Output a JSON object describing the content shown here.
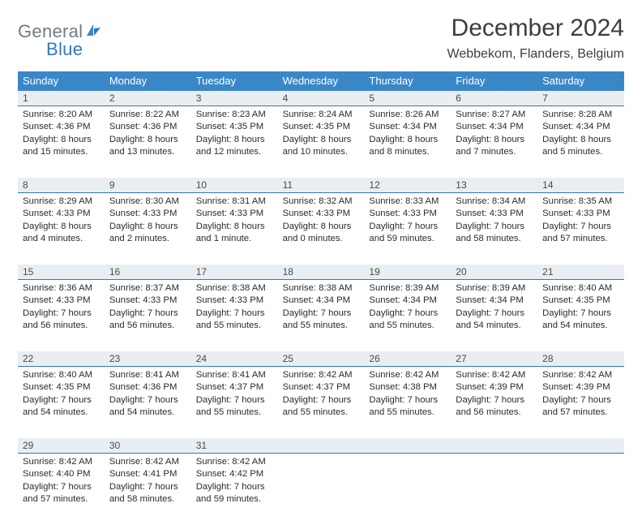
{
  "brand": {
    "part1": "General",
    "part2": "Blue"
  },
  "title": "December 2024",
  "location": "Webbekom, Flanders, Belgium",
  "colors": {
    "header_bg": "#3a87c8",
    "header_text": "#ffffff",
    "daynum_bg": "#e9eef2",
    "separator": "#2f7ac0",
    "logo_gray": "#6f7b84",
    "logo_blue": "#2f7ac0",
    "text": "#2b2b2b",
    "page_bg": "#ffffff"
  },
  "layout": {
    "columns": 7,
    "rows": 5,
    "header_font_size": 13,
    "daynum_font_size": 12,
    "body_font_size": 11.3,
    "title_font_size": 30,
    "location_font_size": 16
  },
  "day_names": [
    "Sunday",
    "Monday",
    "Tuesday",
    "Wednesday",
    "Thursday",
    "Friday",
    "Saturday"
  ],
  "weeks": [
    [
      {
        "n": "1",
        "sr": "8:20 AM",
        "ss": "4:36 PM",
        "dl": "8 hours and 15 minutes."
      },
      {
        "n": "2",
        "sr": "8:22 AM",
        "ss": "4:36 PM",
        "dl": "8 hours and 13 minutes."
      },
      {
        "n": "3",
        "sr": "8:23 AM",
        "ss": "4:35 PM",
        "dl": "8 hours and 12 minutes."
      },
      {
        "n": "4",
        "sr": "8:24 AM",
        "ss": "4:35 PM",
        "dl": "8 hours and 10 minutes."
      },
      {
        "n": "5",
        "sr": "8:26 AM",
        "ss": "4:34 PM",
        "dl": "8 hours and 8 minutes."
      },
      {
        "n": "6",
        "sr": "8:27 AM",
        "ss": "4:34 PM",
        "dl": "8 hours and 7 minutes."
      },
      {
        "n": "7",
        "sr": "8:28 AM",
        "ss": "4:34 PM",
        "dl": "8 hours and 5 minutes."
      }
    ],
    [
      {
        "n": "8",
        "sr": "8:29 AM",
        "ss": "4:33 PM",
        "dl": "8 hours and 4 minutes."
      },
      {
        "n": "9",
        "sr": "8:30 AM",
        "ss": "4:33 PM",
        "dl": "8 hours and 2 minutes."
      },
      {
        "n": "10",
        "sr": "8:31 AM",
        "ss": "4:33 PM",
        "dl": "8 hours and 1 minute."
      },
      {
        "n": "11",
        "sr": "8:32 AM",
        "ss": "4:33 PM",
        "dl": "8 hours and 0 minutes."
      },
      {
        "n": "12",
        "sr": "8:33 AM",
        "ss": "4:33 PM",
        "dl": "7 hours and 59 minutes."
      },
      {
        "n": "13",
        "sr": "8:34 AM",
        "ss": "4:33 PM",
        "dl": "7 hours and 58 minutes."
      },
      {
        "n": "14",
        "sr": "8:35 AM",
        "ss": "4:33 PM",
        "dl": "7 hours and 57 minutes."
      }
    ],
    [
      {
        "n": "15",
        "sr": "8:36 AM",
        "ss": "4:33 PM",
        "dl": "7 hours and 56 minutes."
      },
      {
        "n": "16",
        "sr": "8:37 AM",
        "ss": "4:33 PM",
        "dl": "7 hours and 56 minutes."
      },
      {
        "n": "17",
        "sr": "8:38 AM",
        "ss": "4:33 PM",
        "dl": "7 hours and 55 minutes."
      },
      {
        "n": "18",
        "sr": "8:38 AM",
        "ss": "4:34 PM",
        "dl": "7 hours and 55 minutes."
      },
      {
        "n": "19",
        "sr": "8:39 AM",
        "ss": "4:34 PM",
        "dl": "7 hours and 55 minutes."
      },
      {
        "n": "20",
        "sr": "8:39 AM",
        "ss": "4:34 PM",
        "dl": "7 hours and 54 minutes."
      },
      {
        "n": "21",
        "sr": "8:40 AM",
        "ss": "4:35 PM",
        "dl": "7 hours and 54 minutes."
      }
    ],
    [
      {
        "n": "22",
        "sr": "8:40 AM",
        "ss": "4:35 PM",
        "dl": "7 hours and 54 minutes."
      },
      {
        "n": "23",
        "sr": "8:41 AM",
        "ss": "4:36 PM",
        "dl": "7 hours and 54 minutes."
      },
      {
        "n": "24",
        "sr": "8:41 AM",
        "ss": "4:37 PM",
        "dl": "7 hours and 55 minutes."
      },
      {
        "n": "25",
        "sr": "8:42 AM",
        "ss": "4:37 PM",
        "dl": "7 hours and 55 minutes."
      },
      {
        "n": "26",
        "sr": "8:42 AM",
        "ss": "4:38 PM",
        "dl": "7 hours and 55 minutes."
      },
      {
        "n": "27",
        "sr": "8:42 AM",
        "ss": "4:39 PM",
        "dl": "7 hours and 56 minutes."
      },
      {
        "n": "28",
        "sr": "8:42 AM",
        "ss": "4:39 PM",
        "dl": "7 hours and 57 minutes."
      }
    ],
    [
      {
        "n": "29",
        "sr": "8:42 AM",
        "ss": "4:40 PM",
        "dl": "7 hours and 57 minutes."
      },
      {
        "n": "30",
        "sr": "8:42 AM",
        "ss": "4:41 PM",
        "dl": "7 hours and 58 minutes."
      },
      {
        "n": "31",
        "sr": "8:42 AM",
        "ss": "4:42 PM",
        "dl": "7 hours and 59 minutes."
      },
      null,
      null,
      null,
      null
    ]
  ],
  "labels": {
    "sunrise": "Sunrise: ",
    "sunset": "Sunset: ",
    "daylight": "Daylight: "
  }
}
